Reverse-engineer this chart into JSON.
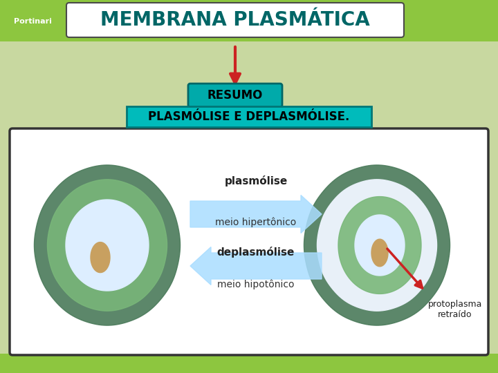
{
  "title": "MEMBRANA PLASMÁTICA",
  "title_bg": "#ffffff",
  "title_border": "#4a4a4a",
  "title_color": "#006666",
  "header_bg": "#8dc63f",
  "arrow_down_color": "#cc2222",
  "resumo_text": "RESUMO",
  "resumo_bg": "#00aaaa",
  "resumo_border": "#006666",
  "resumo_text_color": "#000000",
  "subtitle_text": "PLASMÓLISE E DEPLASMÓLISE.",
  "subtitle_bg": "#00bbbb",
  "subtitle_border": "#007777",
  "subtitle_text_color": "#000000",
  "main_bg": "#c8d8a0",
  "diagram_bg": "#ffffff",
  "diagram_border": "#333333",
  "label_plasmo": "plasmólise",
  "label_meio_hiper": "meio hipertônico",
  "label_deplasmo": "deplasmólise",
  "label_meio_hipo": "meio hipotônico",
  "label_proto": "protoplasma\nretraído",
  "arrow_right_color": "#aaddff",
  "arrow_left_color": "#aaddff",
  "red_arrow_color": "#cc2222",
  "cell_outer_color": "#4a7a5a",
  "cell_inner_color": "#7ab87a",
  "vacuole_color": "#ddeeff",
  "nucleus_color": "#c8a060",
  "logo_bg": "#8dc63f"
}
